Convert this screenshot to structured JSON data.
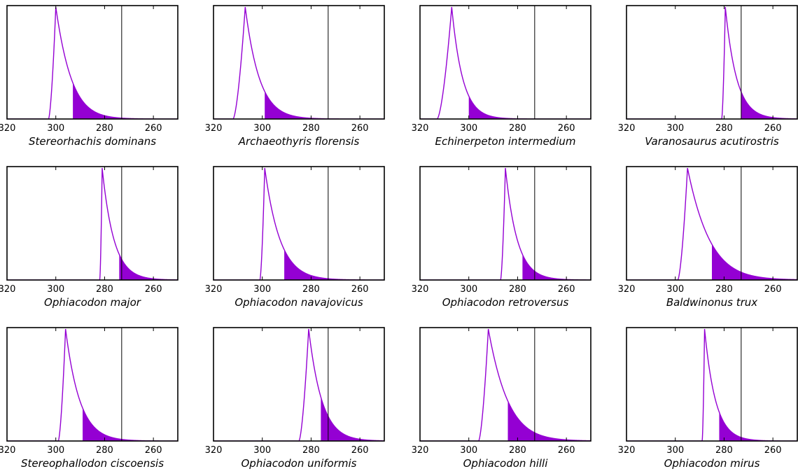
{
  "chart_data": [
    {
      "type": "area",
      "title": "Stereorhachis dominans",
      "xticks": [
        320,
        300,
        280,
        260
      ],
      "xlim": [
        320,
        250
      ],
      "x_reversed": true,
      "ref_line": 273,
      "distribution": {
        "start": 303,
        "mode": 300,
        "shade_from": 293,
        "tail_end": 288,
        "peak_shape": "broad"
      }
    },
    {
      "type": "area",
      "title": "Archaeothyris florensis",
      "xticks": [
        320,
        300,
        280,
        260
      ],
      "xlim": [
        320,
        250
      ],
      "x_reversed": true,
      "ref_line": 273,
      "distribution": {
        "start": 312,
        "mode": 307,
        "shade_from": 299,
        "tail_end": 293,
        "peak_shape": "medium"
      }
    },
    {
      "type": "area",
      "title": "Echinerpeton intermedium",
      "xticks": [
        320,
        300,
        280,
        260
      ],
      "xlim": [
        320,
        250
      ],
      "x_reversed": true,
      "ref_line": 273,
      "distribution": {
        "start": 313,
        "mode": 307,
        "shade_from": 300,
        "tail_end": 293,
        "peak_shape": "sharp"
      }
    },
    {
      "type": "area",
      "title": "Varanosaurus acutirostris",
      "xticks": [
        320,
        300,
        280,
        260
      ],
      "xlim": [
        320,
        250
      ],
      "x_reversed": true,
      "ref_line": 273,
      "distribution": {
        "start": 281,
        "mode": 279.5,
        "shade_from": 273,
        "tail_end": 265,
        "peak_shape": "sharp"
      }
    },
    {
      "type": "area",
      "title": "Ophiacodon major",
      "xticks": [
        320,
        300,
        280,
        260
      ],
      "xlim": [
        320,
        250
      ],
      "x_reversed": true,
      "ref_line": 273,
      "distribution": {
        "start": 282,
        "mode": 281,
        "shade_from": 274,
        "tail_end": 266,
        "peak_shape": "sharp"
      }
    },
    {
      "type": "area",
      "title": "Ophiacodon navajovicus",
      "xticks": [
        320,
        300,
        280,
        260
      ],
      "xlim": [
        320,
        250
      ],
      "x_reversed": true,
      "ref_line": 273,
      "distribution": {
        "start": 301,
        "mode": 299,
        "shade_from": 291,
        "tail_end": 284,
        "peak_shape": "medium"
      }
    },
    {
      "type": "area",
      "title": "Ophiacodon retroversus",
      "xticks": [
        320,
        300,
        280,
        260
      ],
      "xlim": [
        320,
        250
      ],
      "x_reversed": true,
      "ref_line": 273,
      "distribution": {
        "start": 287,
        "mode": 285,
        "shade_from": 278,
        "tail_end": 270,
        "peak_shape": "sharp"
      }
    },
    {
      "type": "area",
      "title": "Baldwinonus trux",
      "xticks": [
        320,
        300,
        280,
        260
      ],
      "xlim": [
        320,
        250
      ],
      "x_reversed": true,
      "ref_line": 273,
      "distribution": {
        "start": 299,
        "mode": 295,
        "shade_from": 285,
        "tail_end": 278,
        "peak_shape": "broad"
      }
    },
    {
      "type": "area",
      "title": "Stereophallodon ciscoensis",
      "xticks": [
        320,
        300,
        280,
        260
      ],
      "xlim": [
        320,
        250
      ],
      "x_reversed": true,
      "ref_line": 273,
      "distribution": {
        "start": 299,
        "mode": 296,
        "shade_from": 289,
        "tail_end": 282,
        "peak_shape": "medium"
      }
    },
    {
      "type": "area",
      "title": "Ophiacodon uniformis",
      "xticks": [
        320,
        300,
        280,
        260
      ],
      "xlim": [
        320,
        250
      ],
      "x_reversed": true,
      "ref_line": 273,
      "distribution": {
        "start": 285,
        "mode": 281,
        "shade_from": 276,
        "tail_end": 268,
        "peak_shape": "medium"
      }
    },
    {
      "type": "area",
      "title": "Ophiacodon hilli",
      "xticks": [
        320,
        300,
        280,
        260
      ],
      "xlim": [
        320,
        250
      ],
      "x_reversed": true,
      "ref_line": 273,
      "distribution": {
        "start": 296,
        "mode": 292,
        "shade_from": 284,
        "tail_end": 277,
        "peak_shape": "broad"
      }
    },
    {
      "type": "area",
      "title": "Ophiacodon mirus",
      "xticks": [
        320,
        300,
        280,
        260
      ],
      "xlim": [
        320,
        250
      ],
      "x_reversed": true,
      "ref_line": 273,
      "distribution": {
        "start": 289,
        "mode": 288,
        "shade_from": 282,
        "tail_end": 274,
        "peak_shape": "sharp"
      }
    }
  ],
  "colors": {
    "curve": "#9400d3",
    "fill": "#9400d3",
    "ref_line": "#000000",
    "frame": "#000000"
  }
}
